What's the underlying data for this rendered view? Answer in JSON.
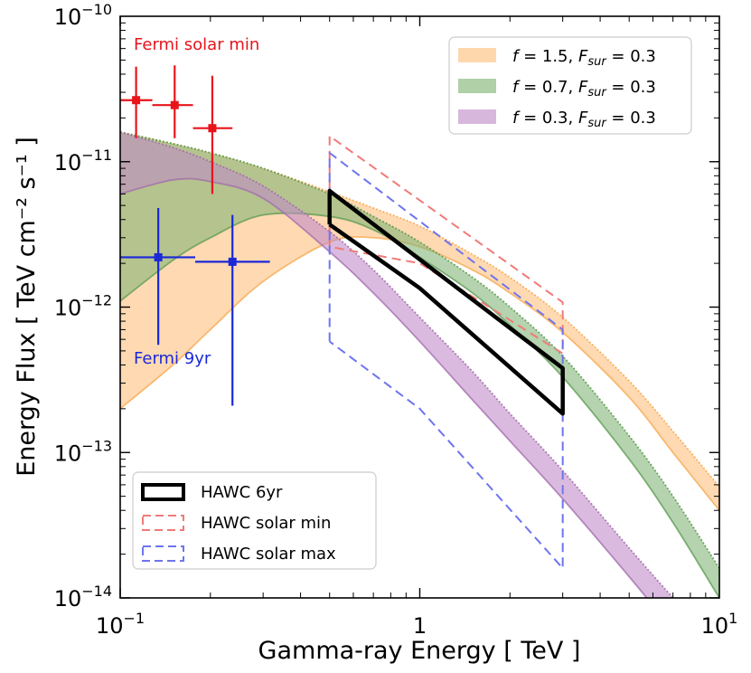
{
  "chart_data": {
    "type": "line",
    "xscale": "log",
    "yscale": "log",
    "xlim": [
      0.1,
      10
    ],
    "ylim": [
      1e-14,
      1e-10
    ],
    "xlabel": "Gamma-ray Energy [ TeV ]",
    "ylabel": "Energy Flux [ TeV cm⁻² s⁻¹ ]",
    "xticks": [
      {
        "value": 0.1,
        "base": "10",
        "exp": "−1"
      },
      {
        "value": 1,
        "base": "1",
        "exp": ""
      },
      {
        "value": 10,
        "base": "10",
        "exp": "1"
      }
    ],
    "yticks": [
      {
        "value": 1e-14,
        "base": "10",
        "exp": "−14"
      },
      {
        "value": 1e-13,
        "base": "10",
        "exp": "−13"
      },
      {
        "value": 1e-12,
        "base": "10",
        "exp": "−12"
      },
      {
        "value": 1e-11,
        "base": "10",
        "exp": "−11"
      },
      {
        "value": 1e-10,
        "base": "10",
        "exp": "−10"
      }
    ],
    "grid": false,
    "bands": [
      {
        "name": "f = 1.5, F_sur = 0.3",
        "legend_label": "f = 1.5, Fsur = 0.3",
        "color": "#ffbe7a",
        "edge_color": "#f5a84e",
        "x": [
          0.1,
          0.15,
          0.2,
          0.3,
          0.5,
          0.7,
          1,
          1.5,
          2,
          3,
          5,
          7,
          10
        ],
        "upper": [
          1.6e-11,
          1.33e-11,
          1.15e-11,
          9e-12,
          6.2e-12,
          4.8e-12,
          3.6e-12,
          2.3e-12,
          1.6e-12,
          8.5e-13,
          3.1e-13,
          1.4e-13,
          5.8e-14
        ],
        "lower": [
          2e-13,
          4e-13,
          7e-13,
          1.5e-12,
          2.8e-12,
          3e-12,
          2.6e-12,
          1.8e-12,
          1.25e-12,
          6.7e-13,
          2.4e-13,
          1e-13,
          4e-14
        ]
      },
      {
        "name": "f = 0.7, F_sur = 0.3",
        "legend_label": "f = 0.7, Fsur = 0.3",
        "color": "#7fb373",
        "edge_color": "#5a9a50",
        "x": [
          0.1,
          0.15,
          0.2,
          0.3,
          0.5,
          0.7,
          1,
          1.5,
          2,
          3,
          5,
          7,
          10
        ],
        "upper": [
          1.6e-11,
          1.33e-11,
          1.15e-11,
          9e-12,
          6e-12,
          4.2e-12,
          2.8e-12,
          1.6e-12,
          1e-12,
          4.6e-13,
          1.3e-13,
          5e-14,
          1.6e-14
        ],
        "lower": [
          1.1e-12,
          2.1e-12,
          3e-12,
          4.3e-12,
          4.2e-12,
          3.4e-12,
          2.2e-12,
          1.25e-12,
          7.5e-13,
          3.3e-13,
          9e-14,
          3.3e-14,
          1e-14
        ]
      },
      {
        "name": "f = 0.3, F_sur = 0.3",
        "legend_label": "f = 0.3, Fsur = 0.3",
        "color": "#c08ac8",
        "edge_color": "#a26aac",
        "x": [
          0.1,
          0.15,
          0.2,
          0.3,
          0.5,
          0.7,
          1,
          1.5,
          2,
          3,
          5,
          7
        ],
        "upper": [
          1.6e-11,
          1.25e-11,
          1e-11,
          6.8e-12,
          3.3e-12,
          1.8e-12,
          8.5e-13,
          3.6e-13,
          1.85e-13,
          7.5e-14,
          2.2e-14,
          1e-14
        ],
        "lower": [
          6e-12,
          7.5e-12,
          7.3e-12,
          5.6e-12,
          2.4e-12,
          1.25e-12,
          5.8e-13,
          2.3e-13,
          1.2e-13,
          4.8e-14,
          1.4e-14,
          6e-15
        ]
      }
    ],
    "fermi_solar_min": {
      "label": "Fermi solar min",
      "color": "#e8141c",
      "points": [
        {
          "x": 0.113,
          "y": 2.65e-11,
          "xlo": 0.1,
          "xhi": 0.128,
          "ylo": 1.45e-11,
          "yhi": 4.5e-11
        },
        {
          "x": 0.152,
          "y": 2.45e-11,
          "xlo": 0.128,
          "xhi": 0.175,
          "ylo": 1.45e-11,
          "yhi": 4.6e-11
        },
        {
          "x": 0.203,
          "y": 1.7e-11,
          "xlo": 0.175,
          "xhi": 0.237,
          "ylo": 6e-12,
          "yhi": 3.9e-11
        }
      ]
    },
    "fermi_9yr": {
      "label": "Fermi 9yr",
      "color": "#1a28d8",
      "points": [
        {
          "x": 0.134,
          "y": 2.2e-12,
          "xlo": 0.1,
          "xhi": 0.178,
          "ylo": 5.5e-13,
          "yhi": 4.8e-12
        },
        {
          "x": 0.237,
          "y": 2.05e-12,
          "xlo": 0.178,
          "xhi": 0.316,
          "ylo": 2.1e-13,
          "yhi": 4.3e-12
        }
      ]
    },
    "hawc_6yr": {
      "label": "HAWC 6yr",
      "color": "#000000",
      "polygon": [
        [
          0.5,
          3.7e-12
        ],
        [
          0.5,
          6.3e-12
        ],
        [
          3.0,
          3.8e-13
        ],
        [
          3.0,
          1.85e-13
        ],
        [
          1.0,
          1.35e-12
        ],
        [
          0.5,
          3.7e-12
        ]
      ]
    },
    "hawc_solar_min": {
      "label": "HAWC solar min",
      "color": "#f07a78",
      "polygon": [
        [
          0.5,
          2.6e-12
        ],
        [
          0.5,
          1.5e-11
        ],
        [
          3.0,
          1.08e-12
        ],
        [
          3.0,
          4.8e-13
        ],
        [
          1.0,
          2e-12
        ],
        [
          0.5,
          2.6e-12
        ]
      ]
    },
    "hawc_solar_max": {
      "label": "HAWC solar max",
      "color": "#6e74ee",
      "polygon": [
        [
          0.5,
          5.8e-13
        ],
        [
          0.5,
          1.15e-11
        ],
        [
          3.0,
          7e-13
        ],
        [
          3.0,
          1.6e-14
        ],
        [
          1.0,
          2e-13
        ],
        [
          0.5,
          5.8e-13
        ]
      ]
    },
    "legend_bands_position": "upper-right",
    "legend_hawc_position": "lower-left"
  }
}
